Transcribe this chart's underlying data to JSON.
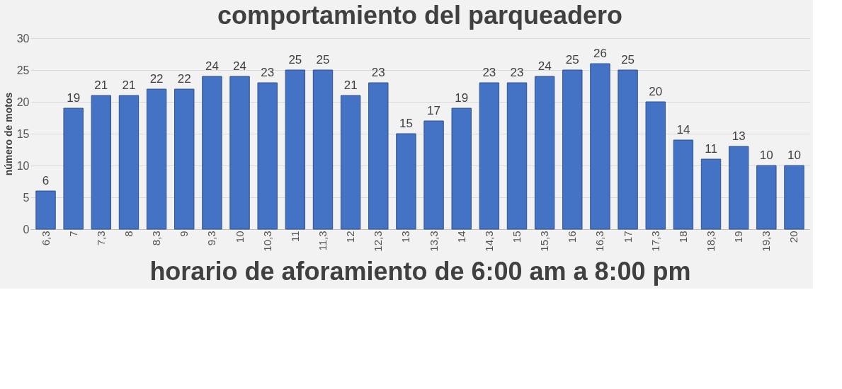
{
  "chart_data": {
    "type": "bar",
    "title": "comportamiento del parqueadero",
    "xlabel": "horario de aforamiento  de 6:00 am a 8:00 pm",
    "ylabel": "número de motos",
    "categories": [
      "6,3",
      "7",
      "7,3",
      "8",
      "8,3",
      "9",
      "9,3",
      "10",
      "10,3",
      "11",
      "11,3",
      "12",
      "12,3",
      "13",
      "13,3",
      "14",
      "14,3",
      "15",
      "15,3",
      "16",
      "16,3",
      "17",
      "17,3",
      "18",
      "18,3",
      "19",
      "19,3",
      "20"
    ],
    "values": [
      6,
      19,
      21,
      21,
      22,
      22,
      24,
      24,
      23,
      25,
      25,
      21,
      23,
      15,
      17,
      19,
      23,
      23,
      24,
      25,
      26,
      25,
      20,
      14,
      11,
      13,
      10,
      10
    ],
    "color": "#4472c4",
    "ylim": [
      0,
      30
    ],
    "yticks": [
      0,
      5,
      10,
      15,
      20,
      25,
      30
    ],
    "grid": "y",
    "data_labels": true
  }
}
